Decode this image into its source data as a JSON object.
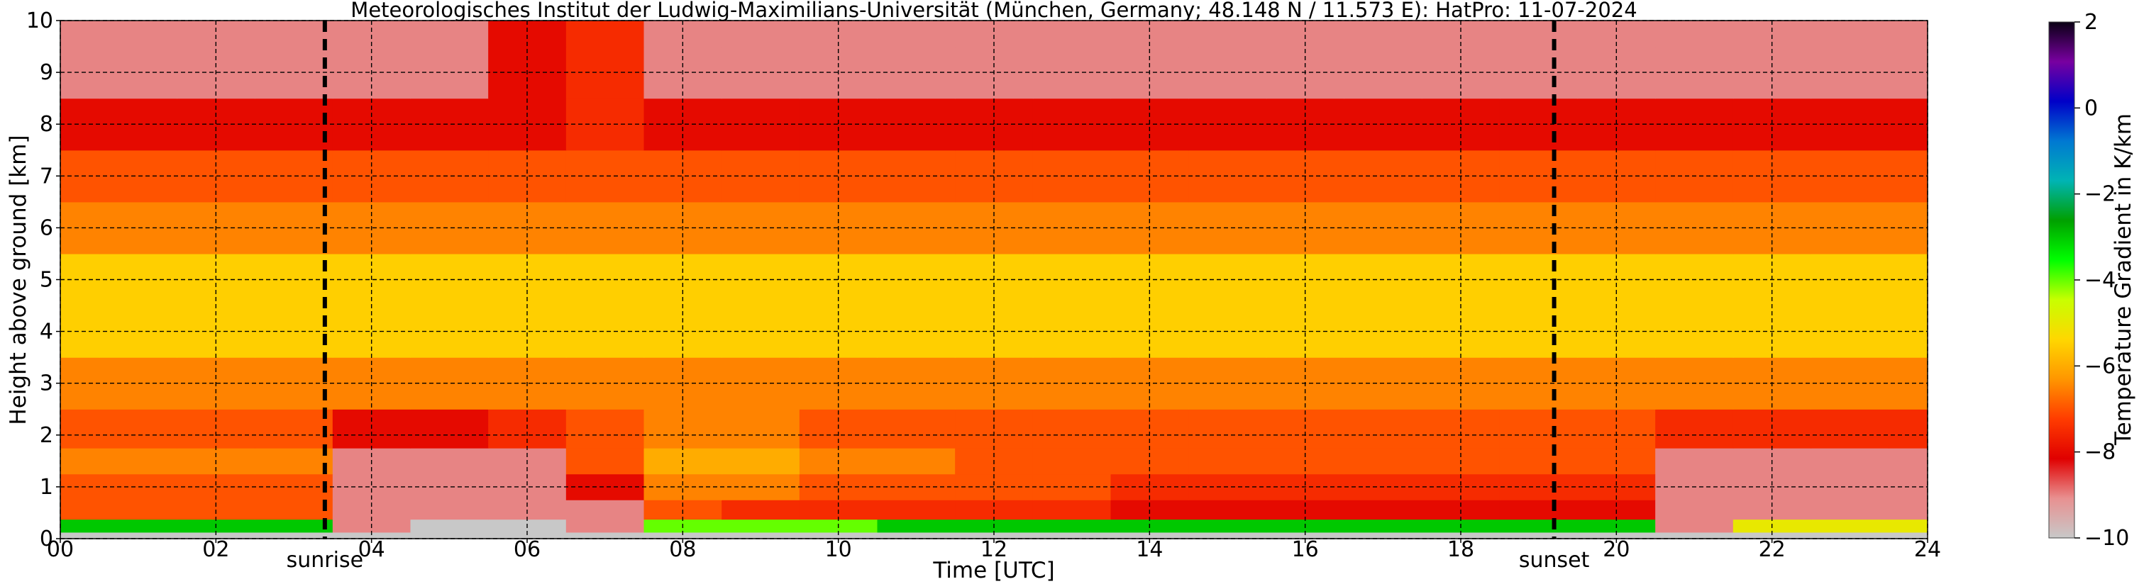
{
  "chart_data": {
    "type": "heatmap",
    "title": "Meteorologisches Institut der Ludwig-Maximilians-Universität (München, Germany; 48.148 N / 11.573 E):    HatPro: 11-07-2024",
    "xlabel": "Time [UTC]",
    "ylabel": "Height above ground [km]",
    "xlim": [
      0,
      24
    ],
    "ylim": [
      0,
      10
    ],
    "x_ticks": [
      "00",
      "02",
      "04",
      "06",
      "08",
      "10",
      "12",
      "14",
      "16",
      "18",
      "20",
      "22",
      "24"
    ],
    "y_ticks": [
      "0",
      "1",
      "2",
      "3",
      "4",
      "5",
      "6",
      "7",
      "8",
      "9",
      "10"
    ],
    "grid": true,
    "colorbar": {
      "label": "Temperature Gradient in K/km",
      "range": [
        -10,
        2
      ],
      "ticks": [
        "2",
        "0",
        "−2",
        "−4",
        "−6",
        "−8",
        "−10"
      ],
      "colors": [
        "#c8c8c8",
        "#e89090",
        "#e00000",
        "#ff3c00",
        "#ff9600",
        "#ffd700",
        "#c8ff00",
        "#00ff00",
        "#00a000",
        "#00b4b4",
        "#0078d2",
        "#0000c8",
        "#7800a0",
        "#0a0014"
      ]
    },
    "vertical_markers": [
      {
        "label": "sunrise",
        "x": 3.4
      },
      {
        "label": "sunset",
        "x": 19.2
      }
    ],
    "rows": [
      {
        "h": 0.0,
        "values": [
          -10,
          -10,
          -10,
          -10,
          -10,
          -10,
          -10,
          -10,
          -10,
          -10,
          -10,
          -10,
          -10,
          -10,
          -10,
          -10,
          -10,
          -10,
          -10,
          -10,
          -10,
          -10,
          -10,
          -10,
          -10
        ]
      },
      {
        "h": 0.25,
        "values": [
          -3,
          -3,
          -3,
          -3,
          -9,
          -10,
          -10,
          -9,
          -4,
          -4,
          -4,
          -3,
          -3,
          -3,
          -3,
          -3,
          -3,
          -3,
          -3,
          -3,
          -3,
          -9,
          -5,
          -5,
          -5
        ]
      },
      {
        "h": 0.5,
        "values": [
          -7,
          -7,
          -7,
          -7,
          -9,
          -9,
          -9,
          -9,
          -7,
          -7.5,
          -7.5,
          -7.5,
          -7.5,
          -7.5,
          -8,
          -8,
          -8,
          -8,
          -8,
          -8,
          -8,
          -9,
          -9,
          -9,
          -9
        ]
      },
      {
        "h": 1.0,
        "values": [
          -7,
          -7,
          -7,
          -7,
          -9,
          -9,
          -9,
          -8,
          -6.5,
          -6.5,
          -7,
          -7,
          -7,
          -7,
          -7.5,
          -7.5,
          -7.5,
          -7.5,
          -7.5,
          -7.5,
          -7.5,
          -9,
          -9,
          -9,
          -9
        ]
      },
      {
        "h": 1.5,
        "values": [
          -6.5,
          -6.5,
          -6.5,
          -6.5,
          -9,
          -9,
          -9,
          -7,
          -6,
          -6,
          -6.5,
          -6.5,
          -7,
          -7,
          -7,
          -7,
          -7,
          -7,
          -7,
          -7,
          -7,
          -9,
          -9,
          -9,
          -9
        ]
      },
      {
        "h": 2.0,
        "values": [
          -7,
          -7,
          -7,
          -7,
          -8,
          -8,
          -7.5,
          -7,
          -6.5,
          -6.5,
          -7,
          -7,
          -7,
          -7,
          -7,
          -7,
          -7,
          -7,
          -7,
          -7,
          -7,
          -7.5,
          -7.5,
          -7.5,
          -7.5
        ]
      },
      {
        "h": 3.0,
        "values": [
          -6.5,
          -6.5,
          -6.5,
          -6.5,
          -6.5,
          -6.5,
          -6.5,
          -6.5,
          -6.5,
          -6.5,
          -6.5,
          -6.5,
          -6.5,
          -6.5,
          -6.5,
          -6.5,
          -6.5,
          -6.5,
          -6.5,
          -6.5,
          -6.5,
          -6.5,
          -6.5,
          -6.5,
          -6.5
        ]
      },
      {
        "h": 4.0,
        "values": [
          -5.5,
          -5.5,
          -5.5,
          -5.5,
          -5.5,
          -5.5,
          -5.5,
          -5.5,
          -5.5,
          -5.5,
          -5.5,
          -5.5,
          -5.5,
          -5.5,
          -5.5,
          -5.5,
          -5.5,
          -5.5,
          -5.5,
          -5.5,
          -5.5,
          -5.5,
          -5.5,
          -5.5,
          -5.5
        ]
      },
      {
        "h": 5.0,
        "values": [
          -5.5,
          -5.5,
          -5.5,
          -5.5,
          -5.5,
          -5.5,
          -5.5,
          -5.5,
          -5.5,
          -5.5,
          -5.5,
          -5.5,
          -5.5,
          -5.5,
          -5.5,
          -5.5,
          -5.5,
          -5.5,
          -5.5,
          -5.5,
          -5.5,
          -5.5,
          -5.5,
          -5.5,
          -5.5
        ]
      },
      {
        "h": 6.0,
        "values": [
          -6.5,
          -6.5,
          -6.5,
          -6.5,
          -6.5,
          -6.5,
          -6.5,
          -6.5,
          -6.5,
          -6.5,
          -6.5,
          -6.5,
          -6.5,
          -6.5,
          -6.5,
          -6.5,
          -6.5,
          -6.5,
          -6.5,
          -6.5,
          -6.5,
          -6.5,
          -6.5,
          -6.5,
          -6.5
        ]
      },
      {
        "h": 7.0,
        "values": [
          -7,
          -7,
          -7,
          -7,
          -7,
          -7,
          -7,
          -7,
          -7,
          -7,
          -7,
          -7,
          -7,
          -7,
          -7,
          -7,
          -7,
          -7,
          -7,
          -7,
          -7,
          -7,
          -7,
          -7,
          -7
        ]
      },
      {
        "h": 8.0,
        "values": [
          -8,
          -8,
          -8,
          -8,
          -8,
          -8,
          -8,
          -7.5,
          -8,
          -8,
          -8,
          -8,
          -8,
          -8,
          -8,
          -8,
          -8,
          -8,
          -8,
          -8,
          -8,
          -8,
          -8,
          -8,
          -8
        ]
      },
      {
        "h": 9.0,
        "values": [
          -9,
          -9,
          -9,
          -9,
          -9,
          -9,
          -8,
          -7.5,
          -9,
          -9,
          -9,
          -9,
          -9,
          -9,
          -9,
          -9,
          -9,
          -9,
          -9,
          -9,
          -9,
          -9,
          -9,
          -9,
          -9
        ]
      },
      {
        "h": 10.0,
        "values": [
          -9,
          -9,
          -9,
          -9,
          -9,
          -9,
          -8,
          -7.5,
          -9,
          -9,
          -9,
          -9,
          -9,
          -9,
          -9,
          -9,
          -9,
          -9,
          -9,
          -9,
          -9,
          -9,
          -9,
          -9,
          -9
        ]
      }
    ]
  }
}
